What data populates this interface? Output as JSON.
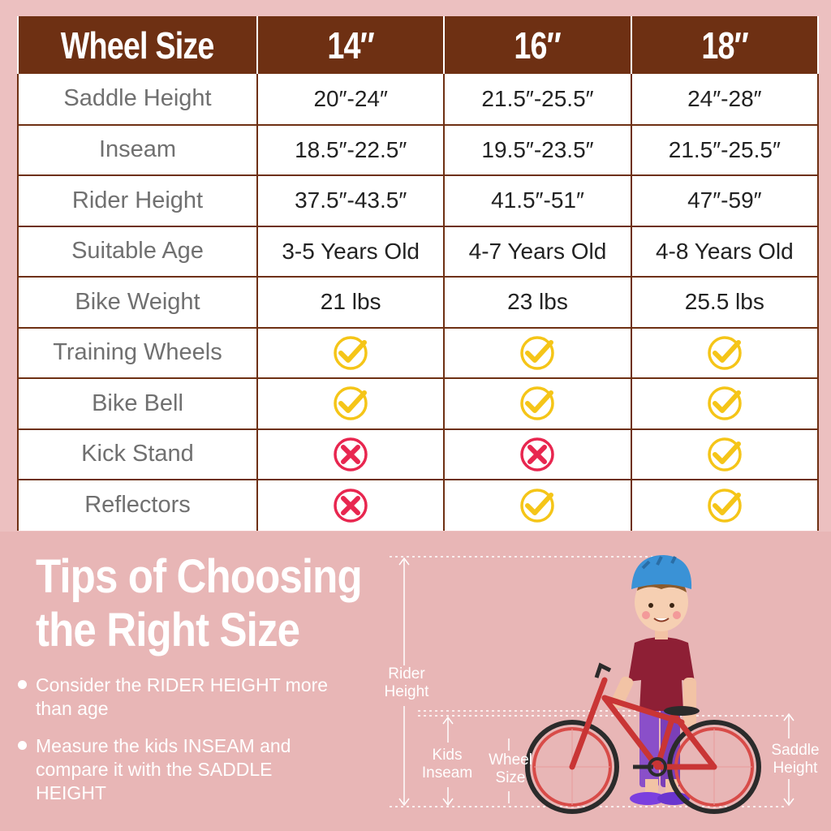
{
  "table": {
    "header": {
      "label": "Wheel Size",
      "sizes": [
        "14″",
        "16″",
        "18″"
      ]
    },
    "rows": [
      {
        "label": "Saddle Height",
        "values": [
          "20″-24″",
          "21.5″-25.5″",
          "24″-28″"
        ]
      },
      {
        "label": "Inseam",
        "values": [
          "18.5″-22.5″",
          "19.5″-23.5″",
          "21.5″-25.5″"
        ]
      },
      {
        "label": "Rider Height",
        "values": [
          "37.5″-43.5″",
          "41.5″-51″",
          "47″-59″"
        ]
      },
      {
        "label": "Suitable Age",
        "values": [
          "3-5 Years Old",
          "4-7 Years Old",
          "4-8 Years Old"
        ]
      },
      {
        "label": "Bike Weight",
        "values": [
          "21 lbs",
          "23 lbs",
          "25.5 lbs"
        ]
      },
      {
        "label": "Training Wheels",
        "marks": [
          "check",
          "check",
          "check"
        ]
      },
      {
        "label": "Bike Bell",
        "marks": [
          "check",
          "check",
          "check"
        ]
      },
      {
        "label": "Kick Stand",
        "marks": [
          "cross",
          "cross",
          "check"
        ]
      },
      {
        "label": "Reflectors",
        "marks": [
          "cross",
          "check",
          "check"
        ]
      }
    ]
  },
  "tips": {
    "title_line1": "Tips of Choosing",
    "title_line2": "the Right Size",
    "items": [
      "Consider the RIDER HEIGHT more than age",
      "Measure the kids INSEAM and compare it with the SADDLE HEIGHT"
    ]
  },
  "diagram": {
    "rider_height": "Rider Height",
    "kids_inseam": "Kids Inseam",
    "wheel_size": "Wheel Size",
    "saddle_height": "Saddle Height"
  },
  "colors": {
    "header_bg": "#6e3013",
    "page_bg": "#e8b6b6",
    "check": "#f5c518",
    "cross": "#e8264f"
  }
}
